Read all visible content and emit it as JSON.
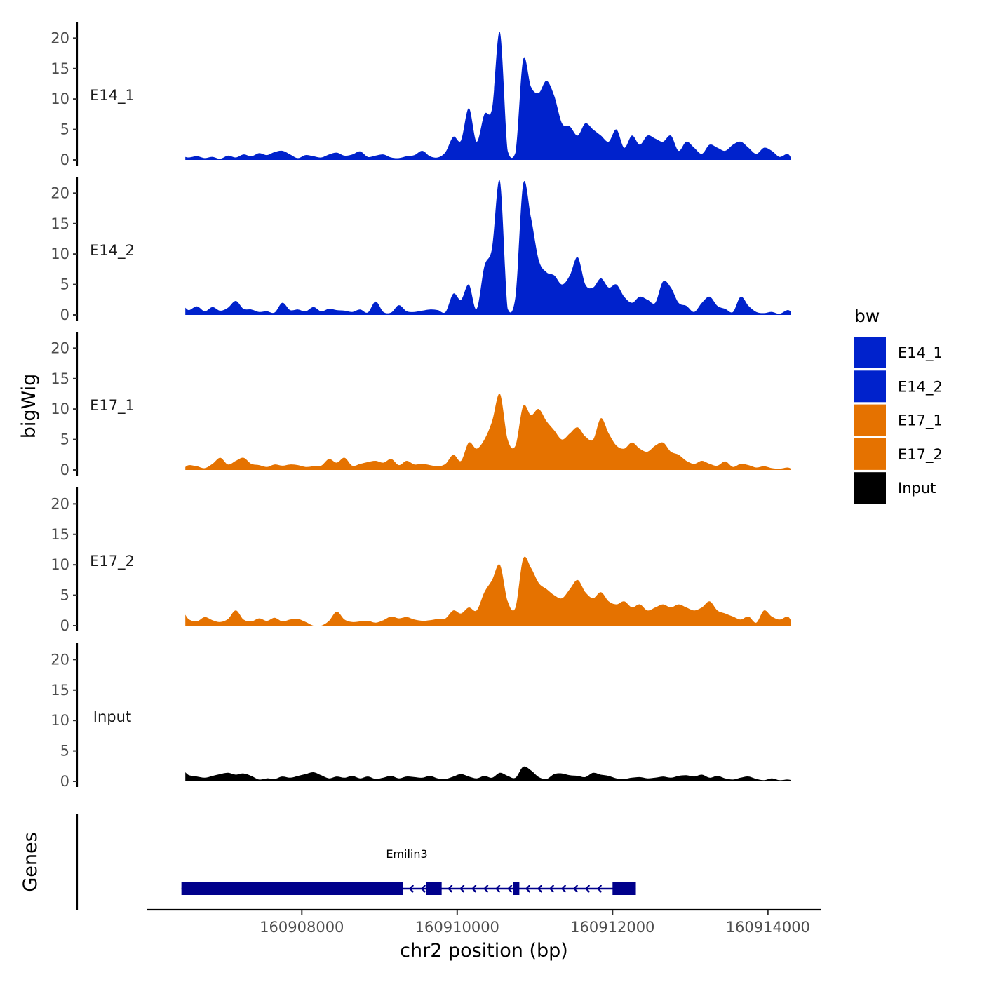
{
  "chart_data": {
    "type": "area",
    "x": [
      160906500,
      160906550,
      160906650,
      160906750,
      160906850,
      160906950,
      160907050,
      160907150,
      160907250,
      160907350,
      160907450,
      160907550,
      160907650,
      160907750,
      160907850,
      160907950,
      160908050,
      160908150,
      160908250,
      160908350,
      160908450,
      160908550,
      160908650,
      160908750,
      160908850,
      160908950,
      160909050,
      160909150,
      160909250,
      160909350,
      160909450,
      160909550,
      160909650,
      160909750,
      160909850,
      160909950,
      160910050,
      160910150,
      160910250,
      160910350,
      160910450,
      160910550,
      160910650,
      160910750,
      160910850,
      160910950,
      160911050,
      160911150,
      160911250,
      160911350,
      160911450,
      160911550,
      160911650,
      160911750,
      160911850,
      160911950,
      160912050,
      160912150,
      160912250,
      160912350,
      160912450,
      160912550,
      160912650,
      160912750,
      160912850,
      160912950,
      160913050,
      160913150,
      160913250,
      160913350,
      160913450,
      160913550,
      160913650,
      160913750,
      160913850,
      160913950,
      160914050,
      160914150,
      160914250,
      160914300
    ],
    "xlabel": "chr2 position (bp)",
    "ylabel": "bigWig",
    "ylim": [
      0,
      22
    ],
    "y_ticks": [
      "0",
      "5",
      "10",
      "15",
      "20"
    ],
    "x_ticks": [
      {
        "value": 160908000,
        "label": "160908000"
      },
      {
        "value": 160910000,
        "label": "160910000"
      },
      {
        "value": 160912000,
        "label": "160912000"
      },
      {
        "value": 160914000,
        "label": "160914000"
      }
    ],
    "series": [
      {
        "name": "E14_1",
        "color": "#0022cc",
        "values": [
          0.5,
          0.4,
          0.6,
          0.3,
          0.5,
          0.2,
          0.7,
          0.4,
          0.9,
          0.6,
          1.1,
          0.8,
          1.3,
          1.5,
          0.9,
          0.3,
          0.8,
          0.6,
          0.4,
          0.9,
          1.2,
          0.7,
          0.9,
          1.4,
          0.5,
          0.7,
          0.9,
          0.4,
          0.3,
          0.6,
          0.8,
          1.5,
          0.6,
          0.4,
          1.3,
          3.8,
          3.2,
          8.5,
          3.0,
          7.5,
          8.5,
          21.0,
          1.5,
          1.2,
          16.5,
          12.0,
          11.0,
          13.0,
          10.5,
          6.0,
          5.5,
          4.0,
          6.0,
          5.0,
          4.0,
          3.0,
          5.0,
          2.0,
          4.0,
          2.5,
          4.0,
          3.5,
          3.0,
          4.0,
          1.5,
          3.0,
          2.0,
          1.0,
          2.5,
          2.0,
          1.5,
          2.5,
          3.0,
          2.0,
          1.0,
          2.0,
          1.5,
          0.5,
          1.0,
          0.3
        ]
      },
      {
        "name": "E14_2",
        "color": "#0022cc",
        "values": [
          1.2,
          0.8,
          1.4,
          0.6,
          1.3,
          0.7,
          1.2,
          2.3,
          1.0,
          0.9,
          0.5,
          0.6,
          0.4,
          2.0,
          0.8,
          0.9,
          0.6,
          1.3,
          0.6,
          1.0,
          0.8,
          0.7,
          0.5,
          0.9,
          0.4,
          2.2,
          0.5,
          0.4,
          1.6,
          0.6,
          0.5,
          0.7,
          0.9,
          0.8,
          0.5,
          3.5,
          2.5,
          5.0,
          1.0,
          8.0,
          11.0,
          22.0,
          1.0,
          3.0,
          21.5,
          16.0,
          9.0,
          7.0,
          6.5,
          5.0,
          6.5,
          9.5,
          5.0,
          4.5,
          6.0,
          4.5,
          5.0,
          3.0,
          2.0,
          3.0,
          2.5,
          2.0,
          5.5,
          4.5,
          2.0,
          1.5,
          0.5,
          2.0,
          3.0,
          1.5,
          1.0,
          0.5,
          3.0,
          1.5,
          0.5,
          0.3,
          0.5,
          0.2,
          0.8,
          0.5
        ]
      },
      {
        "name": "E17_1",
        "color": "#e57200",
        "values": [
          0.5,
          0.8,
          0.6,
          0.3,
          1.0,
          2.0,
          0.9,
          1.5,
          2.0,
          1.0,
          0.8,
          0.5,
          0.9,
          0.7,
          0.9,
          0.8,
          0.5,
          0.6,
          0.7,
          1.8,
          1.2,
          2.0,
          0.7,
          1.0,
          1.3,
          1.5,
          1.2,
          1.8,
          0.8,
          1.5,
          0.9,
          1.0,
          0.8,
          0.6,
          1.0,
          2.5,
          1.5,
          4.5,
          3.5,
          5.0,
          8.0,
          12.5,
          5.0,
          4.0,
          10.5,
          9.0,
          10.0,
          8.0,
          6.5,
          5.0,
          6.0,
          7.0,
          5.5,
          5.0,
          8.5,
          6.0,
          4.0,
          3.5,
          4.5,
          3.5,
          3.0,
          4.0,
          4.5,
          3.0,
          2.5,
          1.5,
          1.0,
          1.5,
          1.0,
          0.7,
          1.4,
          0.5,
          1.0,
          0.8,
          0.4,
          0.6,
          0.3,
          0.2,
          0.4,
          0.2
        ]
      },
      {
        "name": "E17_2",
        "color": "#e57200",
        "values": [
          1.8,
          1.0,
          0.7,
          1.4,
          0.9,
          0.6,
          1.1,
          2.5,
          1.0,
          0.7,
          1.2,
          0.8,
          1.3,
          0.7,
          1.0,
          1.1,
          0.6,
          0.0,
          0.0,
          0.8,
          2.3,
          1.0,
          0.6,
          0.7,
          0.8,
          0.5,
          0.9,
          1.5,
          1.2,
          1.4,
          1.0,
          0.8,
          0.9,
          1.1,
          1.2,
          2.5,
          2.0,
          3.0,
          2.5,
          5.5,
          7.5,
          10.0,
          4.0,
          3.0,
          11.0,
          9.5,
          7.0,
          6.0,
          5.0,
          4.5,
          6.0,
          7.5,
          5.5,
          4.5,
          5.5,
          4.0,
          3.5,
          4.0,
          3.0,
          3.5,
          2.5,
          3.0,
          3.5,
          3.0,
          3.5,
          3.0,
          2.5,
          3.0,
          4.0,
          2.5,
          2.0,
          1.5,
          1.0,
          1.5,
          0.5,
          2.5,
          1.5,
          1.0,
          1.5,
          0.8
        ]
      },
      {
        "name": "Input",
        "color": "#000000",
        "values": [
          1.5,
          1.0,
          0.8,
          0.6,
          0.9,
          1.2,
          1.4,
          1.1,
          1.3,
          0.9,
          0.3,
          0.5,
          0.4,
          0.8,
          0.6,
          0.9,
          1.2,
          1.5,
          1.0,
          0.5,
          0.8,
          0.6,
          0.9,
          0.5,
          0.8,
          0.4,
          0.6,
          0.9,
          0.5,
          0.8,
          0.7,
          0.6,
          0.9,
          0.5,
          0.4,
          0.8,
          1.2,
          0.8,
          0.5,
          0.9,
          0.6,
          1.4,
          0.9,
          0.6,
          2.4,
          1.8,
          0.7,
          0.4,
          1.2,
          1.3,
          1.0,
          0.9,
          0.7,
          1.4,
          1.1,
          0.9,
          0.5,
          0.4,
          0.6,
          0.7,
          0.5,
          0.6,
          0.8,
          0.6,
          0.9,
          1.0,
          0.8,
          1.1,
          0.6,
          0.9,
          0.5,
          0.3,
          0.6,
          0.8,
          0.4,
          0.2,
          0.5,
          0.2,
          0.3,
          0.2
        ]
      }
    ],
    "legend": {
      "title": "bw",
      "position": "right",
      "entries": [
        {
          "label": "E14_1",
          "color": "#0022cc"
        },
        {
          "label": "E14_2",
          "color": "#0022cc"
        },
        {
          "label": "E17_1",
          "color": "#e57200"
        },
        {
          "label": "E17_2",
          "color": "#e57200"
        },
        {
          "label": "Input",
          "color": "#000000"
        }
      ]
    },
    "genes_track": {
      "label": "Genes",
      "color": "#00008b",
      "genes": [
        {
          "name": "Emilin3",
          "strand": "-",
          "start": 160906450,
          "end": 160912300,
          "exons": [
            [
              160906450,
              160909300
            ],
            [
              160909600,
              160909800
            ],
            [
              160910720,
              160910800
            ],
            [
              160912000,
              160912300
            ]
          ]
        }
      ]
    }
  }
}
